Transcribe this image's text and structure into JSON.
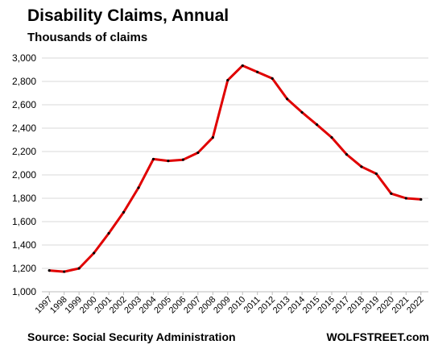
{
  "chart_data": {
    "type": "line",
    "title": "Disability Claims, Annual",
    "subtitle": "Thousands of claims",
    "xlabel": "",
    "ylabel": "",
    "x": [
      "1997",
      "1998",
      "1999",
      "2000",
      "2001",
      "2002",
      "2003",
      "2004",
      "2005",
      "2006",
      "2007",
      "2008",
      "2009",
      "2010",
      "2011",
      "2012",
      "2013",
      "2014",
      "2015",
      "2016",
      "2017",
      "2018",
      "2019",
      "2020",
      "2021",
      "2022"
    ],
    "series": [
      {
        "values": [
          1182,
          1172,
          1200,
          1331,
          1500,
          1680,
          1890,
          2135,
          2120,
          2130,
          2190,
          2320,
          2810,
          2935,
          2880,
          2825,
          2650,
          2535,
          2430,
          2320,
          2175,
          2070,
          2010,
          1840,
          1800,
          1790
        ],
        "color": "#e00000"
      }
    ],
    "yticks": [
      "1,000",
      "1,200",
      "1,400",
      "1,600",
      "1,800",
      "2,000",
      "2,200",
      "2,400",
      "2,600",
      "2,800",
      "3,000"
    ],
    "ylim": [
      1000,
      3000
    ],
    "grid": true,
    "source": "Source: Social Security Administration",
    "brand": "WOLFSTREET.com"
  }
}
